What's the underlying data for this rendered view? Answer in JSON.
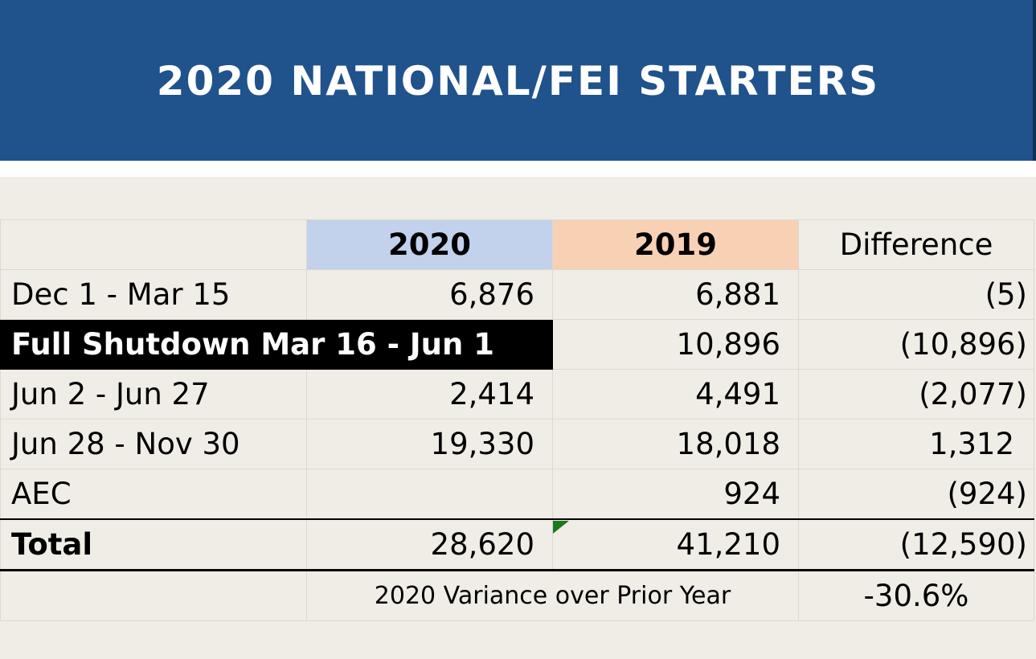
{
  "header": {
    "title": "2020 NATIONAL/FEI STARTERS"
  },
  "table": {
    "columns": [
      "",
      "2020",
      "2019",
      "Difference"
    ],
    "rows": [
      {
        "label": "Dec 1 - Mar 15",
        "y2020": "6,876",
        "y2019": "6,881",
        "diff": "(5)"
      },
      {
        "label": "Full Shutdown Mar 16 - Jun 1",
        "y2020": "",
        "y2019": "10,896",
        "diff": "(10,896)"
      },
      {
        "label": "Jun 2 - Jun 27",
        "y2020": "2,414",
        "y2019": "4,491",
        "diff": "(2,077)"
      },
      {
        "label": "Jun 28 - Nov 30",
        "y2020": "19,330",
        "y2019": "18,018",
        "diff": "1,312"
      },
      {
        "label": "AEC",
        "y2020": "",
        "y2019": "924",
        "diff": "(924)"
      }
    ],
    "total": {
      "label": "Total",
      "y2020": "28,620",
      "y2019": "41,210",
      "diff": "(12,590)"
    },
    "variance": {
      "label": "2020 Variance over Prior Year",
      "value": "-30.6%"
    }
  },
  "colors": {
    "header_bg": "#20528c",
    "col_2020_bg": "#c2d1ec",
    "col_2019_bg": "#f8d0b4",
    "highlight_row_bg": "#000000"
  }
}
